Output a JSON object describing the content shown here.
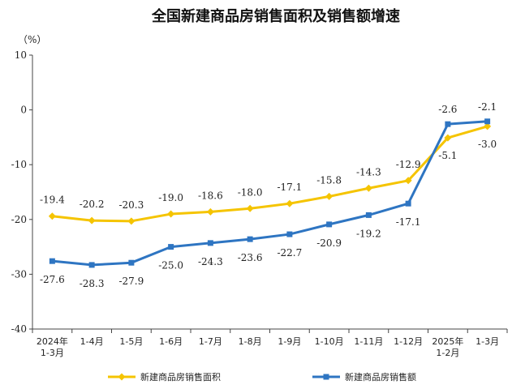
{
  "chart_data": {
    "type": "line",
    "title": "全国新建商品房销售面积及销售额增速",
    "unit": "（%）",
    "xlabel": "",
    "ylabel": "",
    "ylim": [
      -40,
      10
    ],
    "yticks": [
      10,
      0,
      -10,
      -20,
      -30,
      -40
    ],
    "ytick_labels": [
      "10",
      "0",
      "-10",
      "-20",
      "-30",
      "-40"
    ],
    "categories": [
      [
        "2024年",
        "1-3月"
      ],
      [
        "1-4月"
      ],
      [
        "1-5月"
      ],
      [
        "1-6月"
      ],
      [
        "1-7月"
      ],
      [
        "1-8月"
      ],
      [
        "1-9月"
      ],
      [
        "1-10月"
      ],
      [
        "1-11月"
      ],
      [
        "1-12月"
      ],
      [
        "2025年",
        "1-2月"
      ],
      [
        "1-3月"
      ]
    ],
    "grid": false,
    "legend_position": "bottom",
    "series": [
      {
        "name": "新建商品房销售面积",
        "color": "#F5C400",
        "marker": "diamond",
        "values": [
          -19.4,
          -20.2,
          -20.3,
          -19.0,
          -18.6,
          -18.0,
          -17.1,
          -15.8,
          -14.3,
          -12.9,
          -5.1,
          -3.0
        ],
        "labels": [
          "-19.4",
          "-20.2",
          "-20.3",
          "-19.0",
          "-18.6",
          "-18.0",
          "-17.1",
          "-15.8",
          "-14.3",
          "-12.9",
          "-5.1",
          "-3.0"
        ]
      },
      {
        "name": "新建商品房销售额",
        "color": "#2E75C2",
        "marker": "square",
        "values": [
          -27.6,
          -28.3,
          -27.9,
          -25.0,
          -24.3,
          -23.6,
          -22.7,
          -20.9,
          -19.2,
          -17.1,
          -2.6,
          -2.1
        ],
        "labels": [
          "-27.6",
          "-28.3",
          "-27.9",
          "-25.0",
          "-24.3",
          "-23.6",
          "-22.7",
          "-20.9",
          "-19.2",
          "-17.1",
          "-2.6",
          "-2.1"
        ]
      }
    ]
  }
}
